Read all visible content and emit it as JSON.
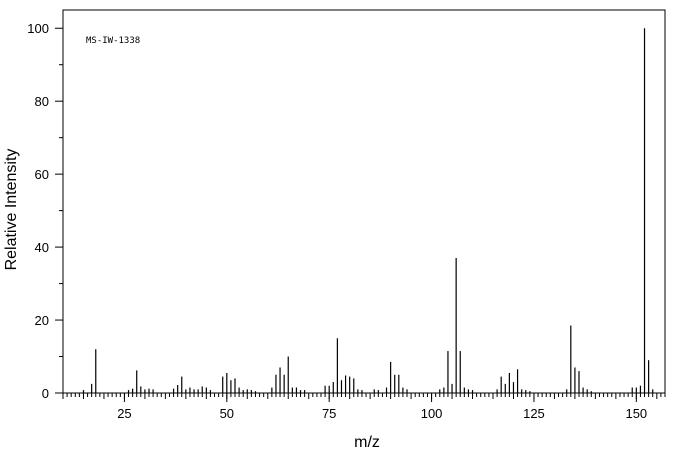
{
  "chart_data": {
    "type": "bar",
    "annotation": "MS-IW-1338",
    "xlabel": "m/z",
    "ylabel": "Relative Intensity",
    "xlim": [
      10,
      157
    ],
    "ylim": [
      0,
      105
    ],
    "x_ticks": [
      25,
      50,
      75,
      100,
      125,
      150
    ],
    "y_ticks": [
      0,
      20,
      40,
      60,
      80,
      100
    ],
    "grid": false,
    "series": [
      {
        "x": [
          15,
          17,
          18,
          26,
          27,
          28,
          29,
          30,
          31,
          32,
          37,
          38,
          39,
          40,
          41,
          42,
          43,
          44,
          45,
          46,
          49,
          50,
          51,
          52,
          53,
          54,
          55,
          56,
          57,
          61,
          62,
          63,
          64,
          65,
          66,
          67,
          68,
          69,
          74,
          75,
          76,
          77,
          78,
          79,
          80,
          81,
          82,
          83,
          86,
          87,
          89,
          90,
          91,
          92,
          93,
          94,
          102,
          103,
          104,
          105,
          106,
          107,
          108,
          109,
          110,
          116,
          117,
          118,
          119,
          120,
          121,
          122,
          123,
          124,
          133,
          134,
          135,
          136,
          137,
          138,
          139,
          149,
          150,
          151,
          152,
          153,
          154
        ],
        "values": [
          0.8,
          2.5,
          12,
          0.8,
          1.2,
          6.2,
          1.8,
          1.0,
          1.2,
          1.0,
          1.2,
          2.2,
          4.5,
          1.0,
          1.5,
          1.0,
          1.0,
          1.8,
          1.5,
          0.8,
          4.5,
          5.5,
          3.5,
          4.0,
          1.5,
          0.8,
          1.0,
          0.8,
          0.5,
          1.5,
          5.0,
          7.0,
          5.0,
          10.0,
          1.5,
          1.5,
          0.8,
          0.8,
          2.0,
          2.0,
          3.0,
          15.0,
          3.5,
          4.8,
          4.5,
          4.0,
          1.0,
          0.8,
          1.0,
          0.8,
          1.5,
          8.5,
          5.0,
          5.0,
          1.5,
          1.0,
          1.0,
          1.5,
          11.5,
          2.5,
          37.0,
          11.5,
          1.5,
          1.0,
          0.8,
          1.0,
          4.5,
          2.5,
          5.5,
          3.0,
          6.5,
          1.0,
          0.8,
          0.5,
          1.0,
          18.5,
          7.0,
          6.0,
          1.5,
          1.0,
          0.5,
          1.5,
          1.5,
          2.0,
          100,
          9.0,
          1.0
        ]
      }
    ]
  }
}
